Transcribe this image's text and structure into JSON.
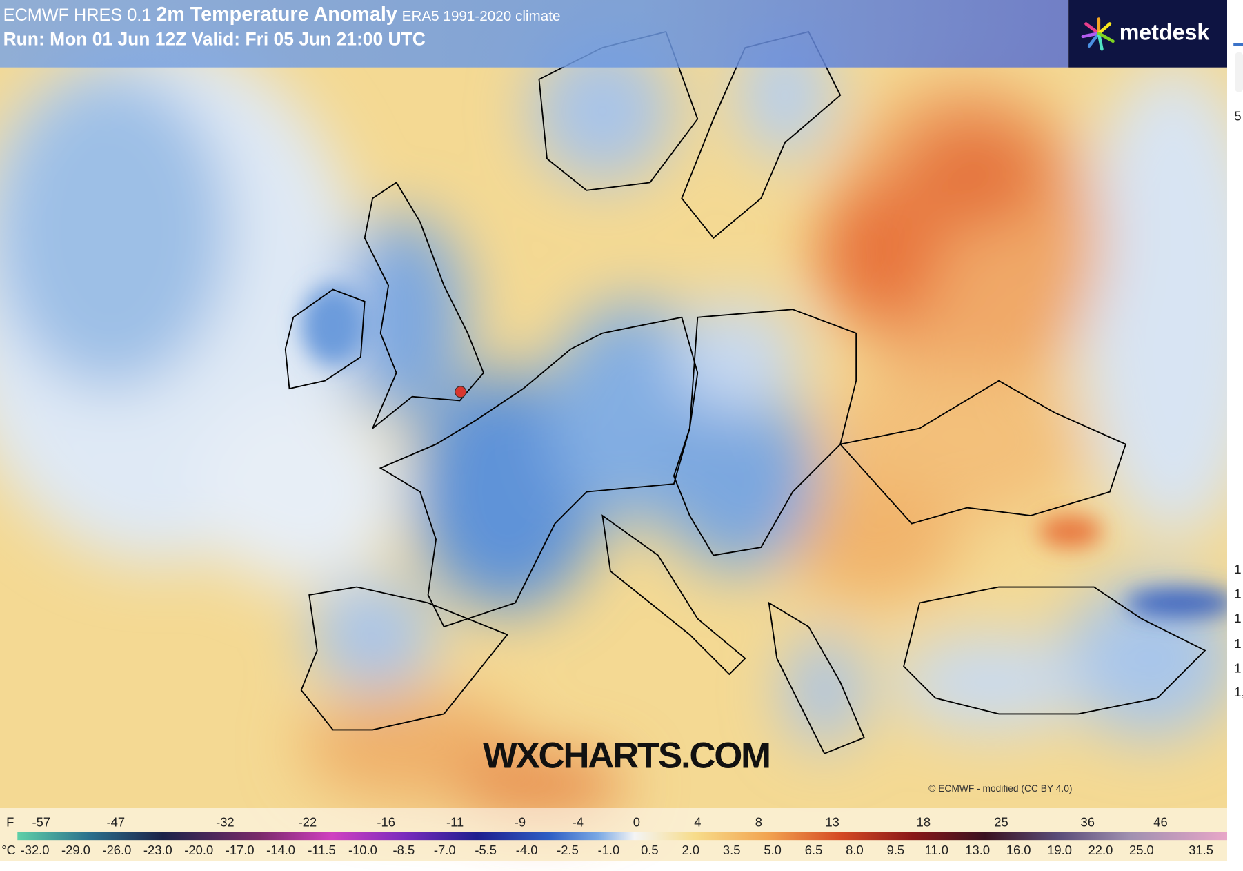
{
  "header": {
    "model": "ECMWF HRES 0.1",
    "field": "2m Temperature Anomaly",
    "climate": "ERA5 1991-2020 climate",
    "run": "Run: Mon 01 Jun 12Z Valid: Fri 05 Jun 21:00 UTC"
  },
  "logo": "metdesk",
  "watermark": "WXCHARTS.COM",
  "credit": "© ECMWF - modified (CC BY 4.0)",
  "legend": {
    "f_unit": "F",
    "f_labels": [
      "-57",
      "-47",
      "-32",
      "-22",
      "-16",
      "-11",
      "-9",
      "-4",
      "0",
      "4",
      "8",
      "13",
      "18",
      "25",
      "36",
      "46"
    ],
    "c_unit": "°C",
    "c_labels": [
      "-32.0",
      "-29.0",
      "-26.0",
      "-23.0",
      "-20.0",
      "-17.0",
      "-14.0",
      "-11.5",
      "-10.0",
      "-8.5",
      "-7.0",
      "-5.5",
      "-4.0",
      "-2.5",
      "-1.0",
      "0.5",
      "2.0",
      "3.5",
      "5.0",
      "6.5",
      "8.0",
      "9.5",
      "11.0",
      "13.0",
      "16.0",
      "19.0",
      "22.0",
      "25.0",
      "31.5"
    ]
  },
  "right_fragments": [
    "5",
    "1",
    "1",
    "1",
    "1",
    "1",
    "1,"
  ]
}
